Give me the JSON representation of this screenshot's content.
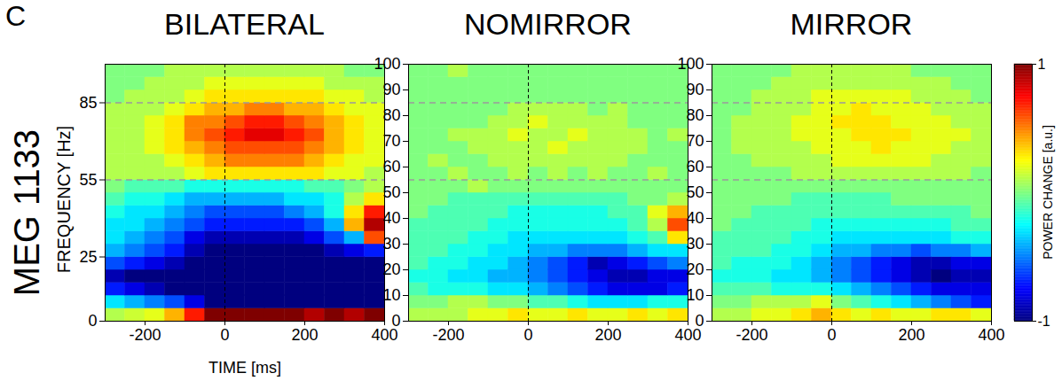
{
  "chart_data": {
    "type": "heatmap",
    "label": "C",
    "row_title": "MEG 1133",
    "x_label": "TIME [ms]",
    "y_label": "FREQUENCY [Hz]",
    "x_bins": [
      -300,
      -250,
      -200,
      -150,
      -100,
      -50,
      0,
      50,
      100,
      150,
      200,
      250,
      300,
      350,
      400
    ],
    "y_bins": [
      0,
      5,
      10,
      15,
      20,
      25,
      30,
      35,
      40,
      45,
      50,
      55,
      60,
      65,
      70,
      75,
      80,
      85,
      90,
      95,
      100
    ],
    "xlim": [
      -300,
      400
    ],
    "ylim": [
      0,
      100
    ],
    "xticks": [
      -200,
      0,
      200,
      400
    ],
    "yticks": [
      0,
      25,
      55,
      85
    ],
    "reference_lines": {
      "x": [
        0
      ],
      "y": [
        55,
        85
      ]
    },
    "colorbar": {
      "label": "POWER CHANGE [a.u.]",
      "range": [
        -1,
        1
      ],
      "ticks": [
        -1,
        1
      ]
    },
    "panels": [
      {
        "title": "BILATERAL",
        "cells": [
          [
            0.1,
            0.15,
            0.2,
            0.4,
            0.7,
            1,
            1,
            1,
            1,
            1,
            0.9,
            1,
            0.9,
            1
          ],
          [
            -0.3,
            -0.4,
            -0.5,
            -0.6,
            -0.8,
            -1,
            -1,
            -1,
            -1,
            -1,
            -1,
            -1,
            -1,
            -1
          ],
          [
            -0.7,
            -0.8,
            -0.9,
            -1,
            -1,
            -1,
            -1,
            -1,
            -1,
            -1,
            -1,
            -1,
            -1,
            -1
          ],
          [
            -0.9,
            -1,
            -1,
            -1,
            -1,
            -1,
            -1,
            -1,
            -1,
            -1,
            -1,
            -1,
            -1,
            -1
          ],
          [
            -0.6,
            -0.7,
            -0.8,
            -0.9,
            -1,
            -1,
            -1,
            -1,
            -1,
            -1,
            -1,
            -1,
            -1,
            -1
          ],
          [
            -0.4,
            -0.5,
            -0.6,
            -0.7,
            -0.9,
            -1,
            -1,
            -1,
            -1,
            -1,
            -1,
            -0.9,
            -0.8,
            -0.7
          ],
          [
            -0.3,
            -0.4,
            -0.5,
            -0.6,
            -0.8,
            -0.9,
            -0.9,
            -0.9,
            -0.9,
            -0.9,
            -0.8,
            -0.6,
            -0.4,
            0.6
          ],
          [
            -0.3,
            -0.3,
            -0.4,
            -0.5,
            -0.6,
            -0.7,
            -0.7,
            -0.7,
            -0.7,
            -0.7,
            -0.6,
            -0.4,
            0.4,
            0.9
          ],
          [
            -0.2,
            -0.3,
            -0.3,
            -0.4,
            -0.5,
            -0.6,
            -0.6,
            -0.6,
            -0.6,
            -0.5,
            -0.4,
            -0.2,
            0.3,
            0.7
          ],
          [
            -0.1,
            -0.2,
            -0.2,
            -0.3,
            -0.4,
            -0.4,
            -0.4,
            -0.4,
            -0.4,
            -0.3,
            -0.3,
            -0.2,
            0.1,
            0.3
          ],
          [
            0,
            -0.1,
            -0.1,
            -0.1,
            -0.2,
            -0.2,
            -0.2,
            -0.2,
            -0.2,
            -0.2,
            -0.1,
            -0.1,
            0,
            0.1
          ],
          [
            0.1,
            0.1,
            0.1,
            0.1,
            0.2,
            0.3,
            0.3,
            0.3,
            0.3,
            0.3,
            0.3,
            0.2,
            0.2,
            0.1
          ],
          [
            0.1,
            0.1,
            0.1,
            0.2,
            0.3,
            0.4,
            0.5,
            0.5,
            0.5,
            0.5,
            0.4,
            0.3,
            0.2,
            0.2
          ],
          [
            0.1,
            0.1,
            0.2,
            0.3,
            0.4,
            0.5,
            0.6,
            0.6,
            0.6,
            0.6,
            0.5,
            0.4,
            0.3,
            0.2
          ],
          [
            0.1,
            0.1,
            0.2,
            0.3,
            0.5,
            0.6,
            0.7,
            0.8,
            0.8,
            0.7,
            0.6,
            0.4,
            0.3,
            0.2
          ],
          [
            0.1,
            0.1,
            0.2,
            0.3,
            0.5,
            0.5,
            0.6,
            0.7,
            0.7,
            0.6,
            0.5,
            0.4,
            0.3,
            0.2
          ],
          [
            0.1,
            0.1,
            0.1,
            0.2,
            0.3,
            0.4,
            0.4,
            0.5,
            0.5,
            0.4,
            0.4,
            0.3,
            0.2,
            0.2
          ],
          [
            0,
            0.1,
            0.1,
            0.1,
            0.2,
            0.3,
            0.3,
            0.3,
            0.3,
            0.3,
            0.3,
            0.2,
            0.2,
            0.1
          ],
          [
            0,
            0,
            0.1,
            0.1,
            0.1,
            0.2,
            0.2,
            0.2,
            0.2,
            0.2,
            0.2,
            0.1,
            0.1,
            0.1
          ],
          [
            0,
            0,
            0,
            0.1,
            0.1,
            0.1,
            0.1,
            0.1,
            0.1,
            0.1,
            0.1,
            0.1,
            0,
            0
          ]
        ]
      },
      {
        "title": "NOMIRROR",
        "cells": [
          [
            0.1,
            0.1,
            0.1,
            0.2,
            0.2,
            0.3,
            0.2,
            0.2,
            0.3,
            0.2,
            0.2,
            0.3,
            0.2,
            0.3
          ],
          [
            0,
            0,
            0.1,
            0.1,
            0,
            0,
            -0.1,
            -0.1,
            -0.2,
            -0.3,
            -0.3,
            -0.3,
            -0.2,
            -0.2
          ],
          [
            -0.1,
            -0.2,
            -0.2,
            -0.2,
            -0.3,
            -0.3,
            -0.4,
            -0.5,
            -0.6,
            -0.7,
            -0.8,
            -0.8,
            -0.8,
            -0.7
          ],
          [
            -0.2,
            -0.2,
            -0.3,
            -0.3,
            -0.4,
            -0.4,
            -0.5,
            -0.6,
            -0.7,
            -0.8,
            -0.9,
            -0.9,
            -0.8,
            -0.8
          ],
          [
            -0.1,
            -0.2,
            -0.2,
            -0.3,
            -0.3,
            -0.4,
            -0.5,
            -0.6,
            -0.7,
            -0.9,
            -0.8,
            -0.7,
            -0.6,
            -0.5
          ],
          [
            -0.1,
            -0.1,
            -0.2,
            -0.2,
            -0.3,
            -0.3,
            -0.4,
            -0.4,
            -0.5,
            -0.5,
            -0.5,
            -0.4,
            -0.3,
            -0.3
          ],
          [
            -0.1,
            -0.1,
            -0.1,
            -0.2,
            -0.2,
            -0.3,
            -0.3,
            -0.3,
            -0.3,
            -0.3,
            -0.3,
            -0.2,
            -0.1,
            0.3
          ],
          [
            -0.1,
            -0.1,
            -0.1,
            -0.1,
            -0.2,
            -0.2,
            -0.2,
            -0.2,
            -0.2,
            -0.2,
            -0.2,
            -0.1,
            0.1,
            0.6
          ],
          [
            0,
            -0.1,
            -0.1,
            -0.1,
            -0.1,
            -0.2,
            -0.2,
            -0.2,
            -0.2,
            -0.2,
            -0.1,
            -0.1,
            0.2,
            0.4
          ],
          [
            0,
            0,
            -0.1,
            -0.1,
            -0.1,
            -0.1,
            -0.1,
            -0.1,
            -0.1,
            -0.1,
            -0.1,
            0,
            0,
            0.1
          ],
          [
            0,
            0,
            0,
            0.1,
            0,
            0,
            0,
            0,
            0,
            0,
            0,
            0,
            0,
            0
          ],
          [
            0,
            0,
            0.1,
            0,
            0,
            0.1,
            0,
            0.1,
            0,
            0.1,
            0,
            0,
            0.1,
            0
          ],
          [
            0,
            0.1,
            0,
            0,
            0.1,
            0.1,
            0.1,
            0.1,
            0.1,
            0.1,
            0.1,
            0,
            0,
            0
          ],
          [
            0,
            0,
            0,
            0.1,
            0.1,
            0.1,
            0.1,
            0.2,
            0.1,
            0.1,
            0.1,
            0.1,
            0,
            0
          ],
          [
            0,
            0,
            0.1,
            0.1,
            0.1,
            0.2,
            0.1,
            0.1,
            0.2,
            0.1,
            0.1,
            0.1,
            0,
            0.1
          ],
          [
            0,
            0,
            0,
            0,
            0.1,
            0.1,
            0.2,
            0.1,
            0.1,
            0.1,
            0.1,
            0,
            0,
            0
          ],
          [
            0,
            0,
            0,
            0,
            0,
            0.1,
            0.1,
            0.1,
            0.1,
            0,
            0.1,
            0,
            0,
            0
          ],
          [
            0,
            0,
            0,
            0,
            0,
            0,
            0,
            0,
            0,
            0,
            0,
            0,
            0,
            0
          ],
          [
            0,
            0,
            0,
            0,
            0,
            0,
            0,
            0,
            0,
            0,
            0,
            0,
            0,
            0
          ],
          [
            0,
            0,
            0.1,
            0,
            0,
            0,
            0,
            0,
            0,
            0,
            0,
            0,
            0,
            0
          ]
        ]
      },
      {
        "title": "MIRROR",
        "cells": [
          [
            0.1,
            0.1,
            0.2,
            0.2,
            0.3,
            0.4,
            0.3,
            0.2,
            0.3,
            0.2,
            0.2,
            0.3,
            0.3,
            0.2
          ],
          [
            0,
            0,
            0.1,
            0.1,
            0.1,
            0.2,
            0,
            -0.1,
            -0.2,
            -0.3,
            -0.4,
            -0.5,
            -0.6,
            -0.7
          ],
          [
            -0.1,
            -0.1,
            -0.1,
            -0.2,
            -0.2,
            -0.2,
            -0.3,
            -0.4,
            -0.5,
            -0.6,
            -0.7,
            -0.8,
            -0.8,
            -0.8
          ],
          [
            -0.2,
            -0.2,
            -0.2,
            -0.3,
            -0.3,
            -0.4,
            -0.5,
            -0.6,
            -0.7,
            -0.8,
            -0.9,
            -1,
            -0.9,
            -0.9
          ],
          [
            -0.1,
            -0.2,
            -0.2,
            -0.2,
            -0.3,
            -0.4,
            -0.5,
            -0.6,
            -0.7,
            -0.8,
            -0.9,
            -0.9,
            -0.8,
            -0.8
          ],
          [
            -0.1,
            -0.1,
            -0.1,
            -0.2,
            -0.2,
            -0.3,
            -0.4,
            -0.4,
            -0.5,
            -0.5,
            -0.6,
            -0.5,
            -0.5,
            -0.4
          ],
          [
            -0.1,
            -0.1,
            -0.1,
            -0.1,
            -0.2,
            -0.2,
            -0.3,
            -0.3,
            -0.3,
            -0.3,
            -0.3,
            -0.3,
            -0.2,
            -0.2
          ],
          [
            0,
            -0.1,
            -0.1,
            -0.1,
            -0.1,
            -0.2,
            -0.2,
            -0.2,
            -0.2,
            -0.2,
            -0.2,
            -0.2,
            -0.1,
            -0.1
          ],
          [
            0,
            0,
            -0.1,
            -0.1,
            -0.1,
            -0.1,
            -0.1,
            -0.1,
            -0.1,
            -0.1,
            -0.1,
            -0.1,
            -0.1,
            0
          ],
          [
            0,
            0,
            0,
            0,
            -0.1,
            -0.1,
            -0.1,
            -0.1,
            -0.1,
            0,
            0,
            0,
            0,
            0
          ],
          [
            0,
            0,
            0,
            0,
            0,
            0,
            0,
            0,
            0,
            0,
            0,
            0,
            0,
            0
          ],
          [
            0,
            0,
            0,
            0,
            0.1,
            0.1,
            0.1,
            0.1,
            0.1,
            0.1,
            0.1,
            0.1,
            0.1,
            0
          ],
          [
            0,
            0,
            0.1,
            0.1,
            0.1,
            0.1,
            0.2,
            0.2,
            0.2,
            0.2,
            0.2,
            0.1,
            0.1,
            0.1
          ],
          [
            0,
            0.1,
            0.1,
            0.1,
            0.1,
            0.2,
            0.2,
            0.2,
            0.3,
            0.2,
            0.2,
            0.2,
            0.1,
            0.1
          ],
          [
            0,
            0.1,
            0.1,
            0.1,
            0.2,
            0.2,
            0.2,
            0.3,
            0.3,
            0.3,
            0.2,
            0.2,
            0.2,
            0.1
          ],
          [
            0,
            0.1,
            0.1,
            0.1,
            0.2,
            0.2,
            0.3,
            0.3,
            0.3,
            0.2,
            0.2,
            0.2,
            0.1,
            0.1
          ],
          [
            0,
            0,
            0.1,
            0.1,
            0.1,
            0.2,
            0.2,
            0.3,
            0.2,
            0.2,
            0.2,
            0.1,
            0.1,
            0.1
          ],
          [
            0,
            0,
            0.1,
            0.1,
            0.1,
            0.2,
            0.2,
            0.2,
            0.2,
            0.2,
            0.1,
            0.1,
            0.1,
            0
          ],
          [
            0,
            0,
            0,
            0.1,
            0.1,
            0.1,
            0.1,
            0.1,
            0.1,
            0.1,
            0.1,
            0.1,
            0,
            0
          ],
          [
            0,
            0,
            0,
            0,
            0.1,
            0.1,
            0.1,
            0.1,
            0.1,
            0.1,
            0,
            0,
            0,
            0
          ]
        ]
      }
    ]
  }
}
